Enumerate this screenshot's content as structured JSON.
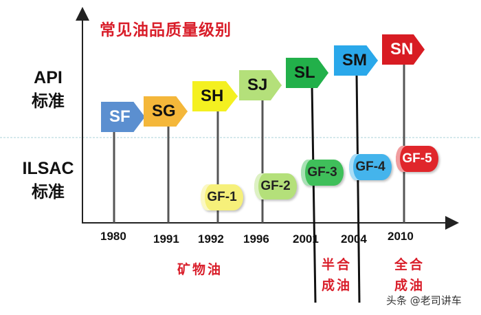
{
  "title": "常见油品质量级别",
  "rows": {
    "api": {
      "line1": "API",
      "line2": "标准"
    },
    "ilsac": {
      "line1": "ILSAC",
      "line2": "标准"
    }
  },
  "api_grades": [
    "SF",
    "SG",
    "SH",
    "SJ",
    "SL",
    "SM",
    "SN"
  ],
  "ilsac_grades": [
    "GF-1",
    "GF-2",
    "GF-3",
    "GF-4",
    "GF-5"
  ],
  "years": [
    "1980",
    "1991",
    "1992",
    "1996",
    "2001",
    "2004",
    "2010"
  ],
  "oil_types": {
    "mineral": "矿物油",
    "semi_synthetic": [
      "半合",
      "成油"
    ],
    "full_synthetic": [
      "全合",
      "成油"
    ]
  },
  "colors": {
    "SF": "#5b8fd0",
    "SG": "#f4b73a",
    "SH": "#f4f020",
    "SJ": "#b4e07a",
    "SL": "#22b04a",
    "SM": "#2aa8ea",
    "SN": "#d81c23",
    "GF-1": "#f6f07a",
    "GF-2": "#b4e07a",
    "GF-3": "#3fbf5a",
    "GF-4": "#44b4ec",
    "GF-5": "#e0262b",
    "accent_red": "#d91e2a"
  },
  "watermark": "头条 @老司讲车"
}
